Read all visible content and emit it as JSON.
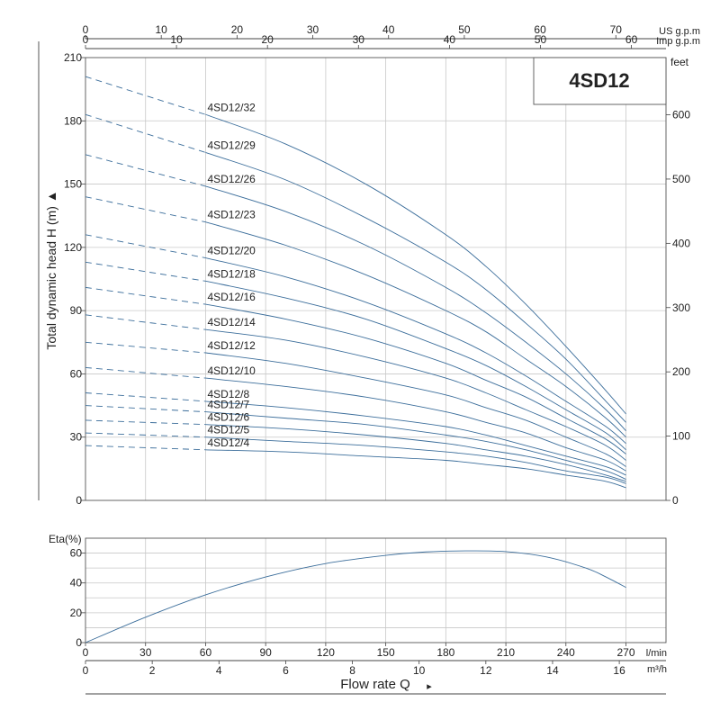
{
  "chart_data": [
    {
      "type": "line",
      "title": "4SD12",
      "ylabel": "Total dynamic head H (m)",
      "ylabel_arrow": "▲",
      "ylim": [
        0,
        210
      ],
      "y_ticks": [
        0,
        30,
        60,
        90,
        120,
        150,
        180,
        210
      ],
      "y2_label": "feet",
      "y2_ticks": [
        0,
        100,
        200,
        300,
        400,
        500,
        600
      ],
      "top_axes": [
        {
          "label": "US g.p.m",
          "ticks": [
            0,
            10,
            20,
            30,
            40,
            50,
            60,
            70
          ],
          "per_lmin": 0.2642
        },
        {
          "label": "Imp g.p.m",
          "ticks": [
            0,
            10,
            20,
            30,
            40,
            50,
            60
          ],
          "per_lmin": 0.22
        }
      ],
      "xlim": [
        0,
        290
      ],
      "x_unit": "l/min",
      "solid_from_x": 60,
      "series": [
        {
          "name": "4SD12/32",
          "x": [
            0,
            60,
            100,
            140,
            180,
            200,
            220,
            240,
            260,
            270
          ],
          "y": [
            201,
            183,
            169,
            150,
            126,
            111,
            93,
            73,
            52,
            41
          ]
        },
        {
          "name": "4SD12/29",
          "x": [
            0,
            60,
            100,
            140,
            180,
            200,
            220,
            240,
            260,
            270
          ],
          "y": [
            183,
            165,
            152,
            134,
            113,
            100,
            84,
            67,
            47,
            37
          ]
        },
        {
          "name": "4SD12/26",
          "x": [
            0,
            60,
            100,
            140,
            180,
            200,
            220,
            240,
            260,
            270
          ],
          "y": [
            164,
            149,
            137,
            121,
            101,
            89,
            75,
            60,
            43,
            33
          ]
        },
        {
          "name": "4SD12/23",
          "x": [
            0,
            60,
            100,
            140,
            180,
            200,
            220,
            240,
            260,
            270
          ],
          "y": [
            144,
            132,
            121,
            107,
            90,
            80,
            67,
            54,
            39,
            30
          ]
        },
        {
          "name": "4SD12/20",
          "x": [
            0,
            60,
            100,
            140,
            180,
            200,
            220,
            240,
            260,
            270
          ],
          "y": [
            126,
            115,
            106,
            94,
            79,
            70,
            59,
            47,
            35,
            27
          ]
        },
        {
          "name": "4SD12/18",
          "x": [
            0,
            60,
            100,
            140,
            180,
            200,
            220,
            240,
            260,
            270
          ],
          "y": [
            113,
            104,
            96,
            86,
            72,
            64,
            54,
            43,
            32,
            24
          ]
        },
        {
          "name": "4SD12/16",
          "x": [
            0,
            60,
            100,
            140,
            180,
            200,
            220,
            240,
            260,
            270
          ],
          "y": [
            101,
            93,
            86,
            77,
            65,
            57,
            49,
            39,
            29,
            22
          ]
        },
        {
          "name": "4SD12/14",
          "x": [
            0,
            60,
            100,
            140,
            180,
            200,
            220,
            240,
            260,
            270
          ],
          "y": [
            88,
            81,
            76,
            68,
            58,
            51,
            43,
            35,
            26,
            19
          ]
        },
        {
          "name": "4SD12/12",
          "x": [
            0,
            60,
            100,
            140,
            180,
            200,
            220,
            240,
            260,
            270
          ],
          "y": [
            75,
            70,
            65,
            58,
            50,
            44,
            38,
            30,
            22,
            16
          ]
        },
        {
          "name": "4SD12/10",
          "x": [
            0,
            60,
            100,
            140,
            180,
            200,
            220,
            240,
            260,
            270
          ],
          "y": [
            63,
            58,
            54,
            49,
            42,
            37,
            32,
            25,
            19,
            14
          ]
        },
        {
          "name": "4SD12/8",
          "x": [
            0,
            60,
            100,
            140,
            180,
            200,
            220,
            240,
            260,
            270
          ],
          "y": [
            51,
            47,
            44,
            40,
            35,
            31,
            26,
            21,
            16,
            12
          ]
        },
        {
          "name": "4SD12/7",
          "x": [
            0,
            60,
            100,
            140,
            180,
            200,
            220,
            240,
            260,
            270
          ],
          "y": [
            45,
            42,
            39,
            36,
            31,
            28,
            24,
            19,
            14,
            10
          ]
        },
        {
          "name": "4SD12/6",
          "x": [
            0,
            60,
            100,
            140,
            180,
            200,
            220,
            240,
            260,
            270
          ],
          "y": [
            38,
            36,
            34,
            31,
            27,
            24,
            21,
            17,
            12,
            9
          ]
        },
        {
          "name": "4SD12/5",
          "x": [
            0,
            60,
            100,
            140,
            180,
            200,
            220,
            240,
            260,
            270
          ],
          "y": [
            32,
            30,
            28,
            26,
            23,
            21,
            18,
            14,
            11,
            8
          ]
        },
        {
          "name": "4SD12/4",
          "x": [
            0,
            60,
            100,
            140,
            180,
            200,
            220,
            240,
            260,
            270
          ],
          "y": [
            26,
            24,
            23,
            21,
            19,
            17,
            15,
            12,
            9,
            6
          ]
        }
      ],
      "grid": true,
      "colors": {
        "curve": "#3c6e9b",
        "grid": "#c8c8c8"
      }
    },
    {
      "type": "line",
      "ylabel": "Eta(%)",
      "ylim": [
        0,
        70
      ],
      "y_ticks": [
        0,
        20,
        40,
        60
      ],
      "xlabel": "Flow rate Q",
      "xlabel_arrow": "▸",
      "x_unit": "l/min",
      "x_ticks": [
        0,
        30,
        60,
        90,
        120,
        150,
        180,
        210,
        240,
        270
      ],
      "x2_unit": "m³/h",
      "x2_ticks": [
        0,
        2,
        4,
        6,
        8,
        10,
        12,
        14,
        16
      ],
      "xlim": [
        0,
        290
      ],
      "series": [
        {
          "x": [
            0,
            30,
            60,
            90,
            120,
            150,
            170,
            190,
            210,
            230,
            250,
            260,
            270
          ],
          "y": [
            0,
            17,
            32,
            44,
            53,
            58.5,
            60.8,
            61.5,
            61,
            57.5,
            50,
            44,
            37
          ]
        }
      ],
      "grid": true,
      "colors": {
        "curve": "#3c6e9b",
        "grid": "#c8c8c8"
      }
    }
  ]
}
